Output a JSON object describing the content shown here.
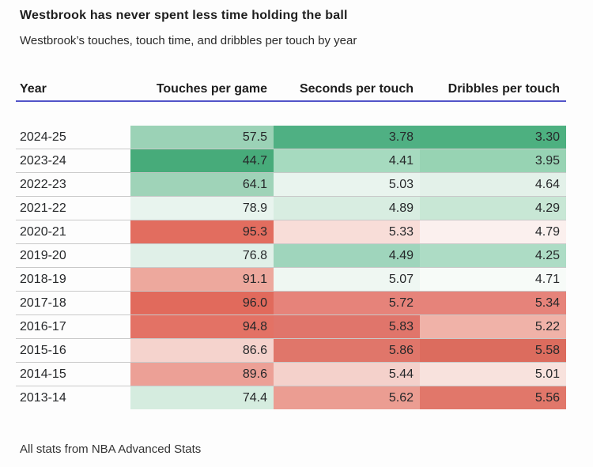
{
  "title": "Westbrook has never spent less time holding the ball",
  "subtitle": "Westbrook’s touches, touch time, and dribbles per touch by year",
  "footer": "All stats from NBA Advanced Stats",
  "accent_underline_color": "#5254c8",
  "chart_data": {
    "type": "heatmap",
    "title": "Westbrook has never spent less time holding the ball",
    "subtitle": "Westbrook’s touches, touch time, and dribbles per touch by year",
    "columns": [
      "Year",
      "Touches per game",
      "Seconds per touch",
      "Dribbles per touch"
    ],
    "legend": "cell shading: green = lower value, red = higher value",
    "rows": [
      {
        "year": "2024-25",
        "touches": "57.5",
        "seconds": "3.78",
        "dribbles": "3.30",
        "touches_color": "#9bd2b6",
        "seconds_color": "#4fb083",
        "dribbles_color": "#4db080"
      },
      {
        "year": "2023-24",
        "touches": "44.7",
        "seconds": "4.41",
        "dribbles": "3.95",
        "touches_color": "#47ab7a",
        "seconds_color": "#a6dabf",
        "dribbles_color": "#97d3b3"
      },
      {
        "year": "2022-23",
        "touches": "64.1",
        "seconds": "5.03",
        "dribbles": "4.64",
        "touches_color": "#9fd3b8",
        "seconds_color": "#e9f4ee",
        "dribbles_color": "#e3f1e9"
      },
      {
        "year": "2021-22",
        "touches": "78.9",
        "seconds": "4.89",
        "dribbles": "4.29",
        "touches_color": "#e8f4ee",
        "seconds_color": "#d8ede1",
        "dribbles_color": "#c8e7d5"
      },
      {
        "year": "2020-21",
        "touches": "95.3",
        "seconds": "5.33",
        "dribbles": "4.79",
        "touches_color": "#e26d5f",
        "seconds_color": "#f8ddd8",
        "dribbles_color": "#fbf0ee"
      },
      {
        "year": "2019-20",
        "touches": "76.8",
        "seconds": "4.49",
        "dribbles": "4.25",
        "touches_color": "#e0f0e8",
        "seconds_color": "#9fd5bc",
        "dribbles_color": "#addcc5"
      },
      {
        "year": "2018-19",
        "touches": "91.1",
        "seconds": "5.07",
        "dribbles": "4.71",
        "touches_color": "#eda89d",
        "seconds_color": "#eff7f2",
        "dribbles_color": "#f7fbf8"
      },
      {
        "year": "2017-18",
        "touches": "96.0",
        "seconds": "5.72",
        "dribbles": "5.34",
        "touches_color": "#e16a5c",
        "seconds_color": "#e6837a",
        "dribbles_color": "#e6837a"
      },
      {
        "year": "2016-17",
        "touches": "94.8",
        "seconds": "5.83",
        "dribbles": "5.22",
        "touches_color": "#e37265",
        "seconds_color": "#e0756b",
        "dribbles_color": "#f0b2a8"
      },
      {
        "year": "2015-16",
        "touches": "86.6",
        "seconds": "5.86",
        "dribbles": "5.58",
        "touches_color": "#f5d3cd",
        "seconds_color": "#e0766a",
        "dribbles_color": "#dc6c5e"
      },
      {
        "year": "2014-15",
        "touches": "89.6",
        "seconds": "5.44",
        "dribbles": "5.01",
        "touches_color": "#eca096",
        "seconds_color": "#f4d1cb",
        "dribbles_color": "#f8e2dd"
      },
      {
        "year": "2013-14",
        "touches": "74.4",
        "seconds": "5.62",
        "dribbles": "5.56",
        "touches_color": "#d5ecdf",
        "seconds_color": "#eb9d92",
        "dribbles_color": "#e1776a"
      }
    ]
  }
}
